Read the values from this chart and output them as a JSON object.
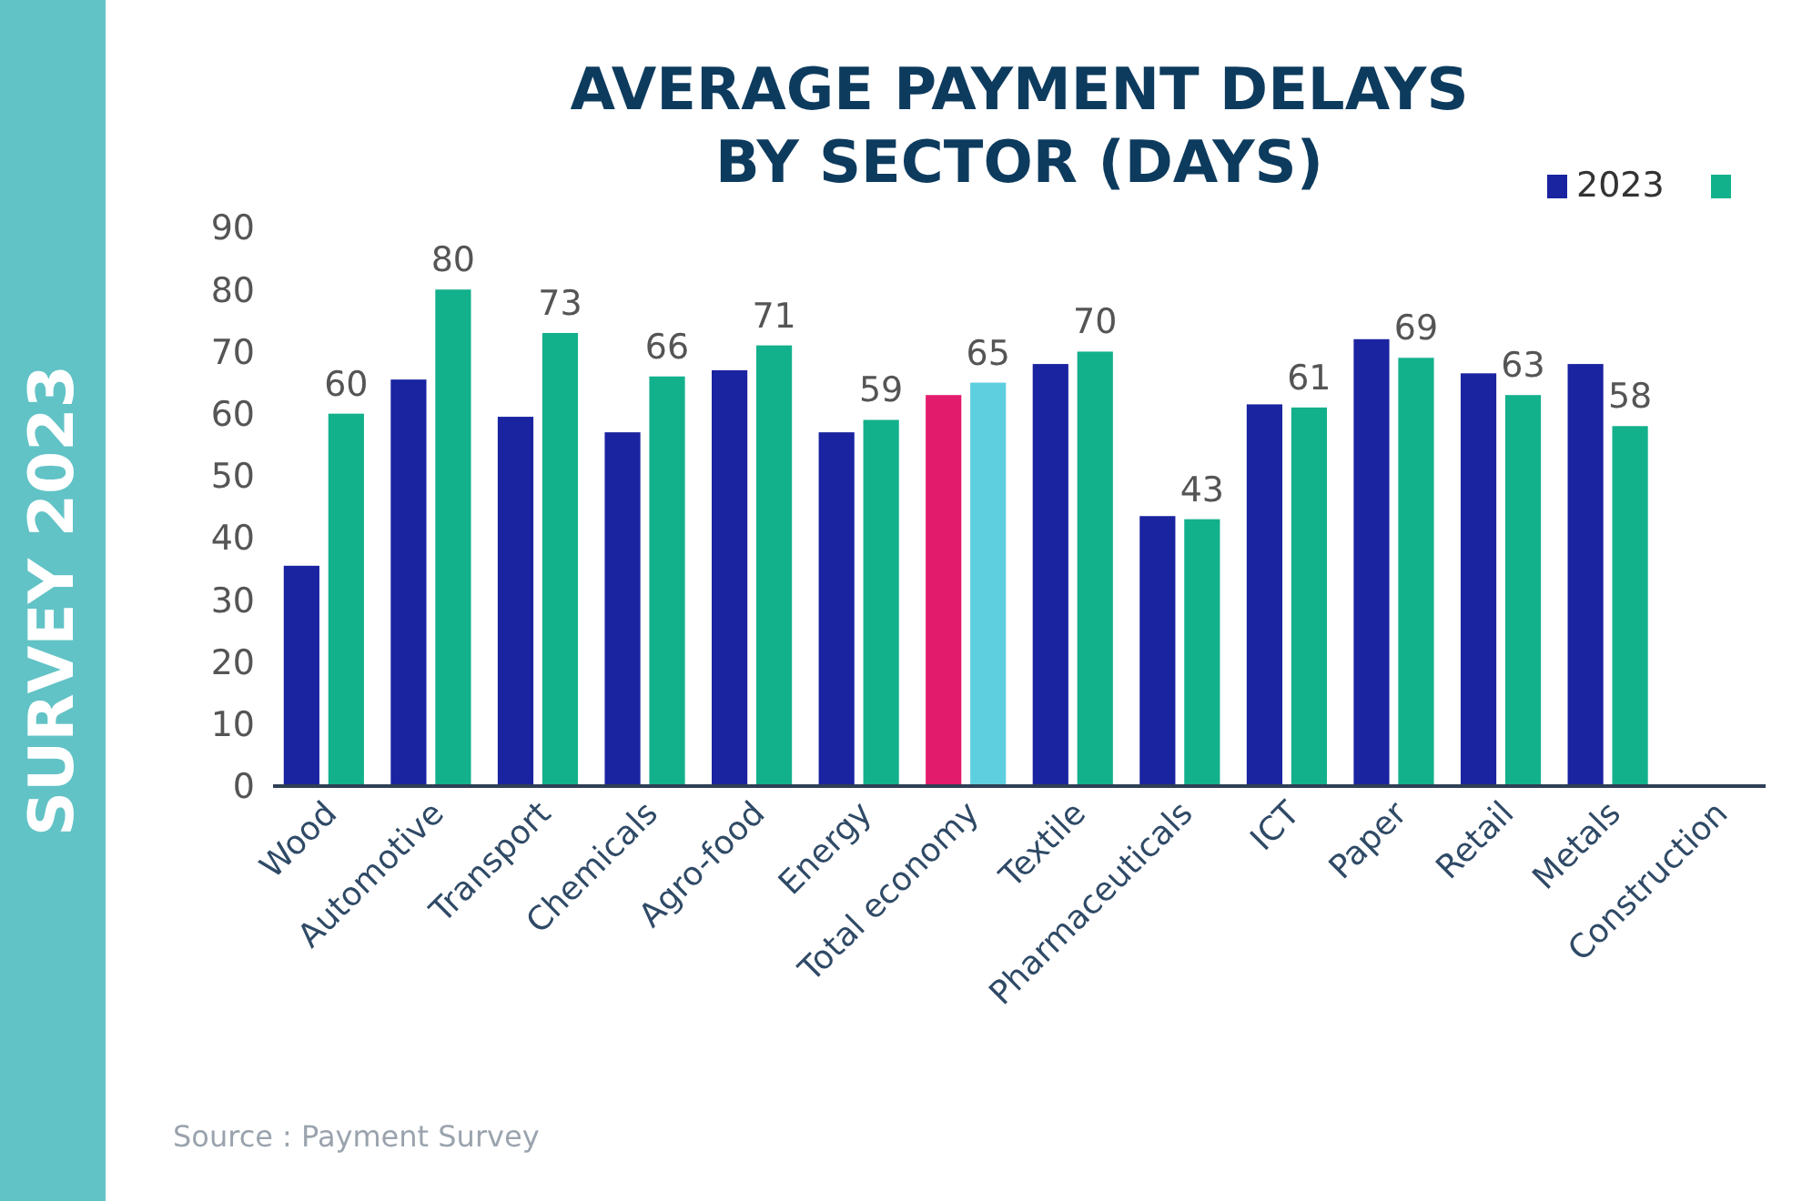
{
  "chart_data": {
    "type": "bar",
    "title": "AVERAGE PAYMENT DELAYS\nBY SECTOR (DAYS)",
    "categories": [
      "Wood",
      "Automotive",
      "Transport",
      "Chemicals",
      "Agro-food",
      "Energy",
      "Total economy",
      "Textile",
      "Pharmaceuticals",
      "ICT",
      "Paper",
      "Retail",
      "Metals",
      "Construction"
    ],
    "series": [
      {
        "name": "2023",
        "color": "#1a23a0",
        "colors": [
          "#1a23a0",
          "#1a23a0",
          "#1a23a0",
          "#1a23a0",
          "#1a23a0",
          "#1a23a0",
          "#e31b6d",
          "#1a23a0",
          "#1a23a0",
          "#1a23a0",
          "#1a23a0",
          "#1a23a0",
          "#1a23a0",
          null
        ],
        "values": [
          35.5,
          65.5,
          59.5,
          57,
          67,
          57,
          63,
          68,
          43.5,
          61.5,
          72,
          66.5,
          68,
          null
        ]
      },
      {
        "color": "#13b08c",
        "colors": [
          "#13b08c",
          "#13b08c",
          "#13b08c",
          "#13b08c",
          "#13b08c",
          "#13b08c",
          "#5ecfdf",
          "#13b08c",
          "#13b08c",
          "#13b08c",
          "#13b08c",
          "#13b08c",
          "#13b08c",
          null
        ],
        "values": [
          60,
          80,
          73,
          66,
          71,
          59,
          65,
          70,
          43,
          61,
          69,
          63,
          58,
          null
        ],
        "value_labels": [
          "60",
          "80",
          "73",
          "66",
          "71",
          "59",
          "65",
          "70",
          "43",
          "61",
          "69",
          "63",
          "58",
          null
        ]
      }
    ],
    "ylim": [
      0,
      90
    ],
    "yticks": [
      0,
      10,
      20,
      30,
      40,
      50,
      60,
      70,
      80,
      90
    ],
    "grid": false,
    "legend": "top right",
    "annotations": [
      "Source : Payment Survey",
      "SURVEY 2023"
    ]
  }
}
